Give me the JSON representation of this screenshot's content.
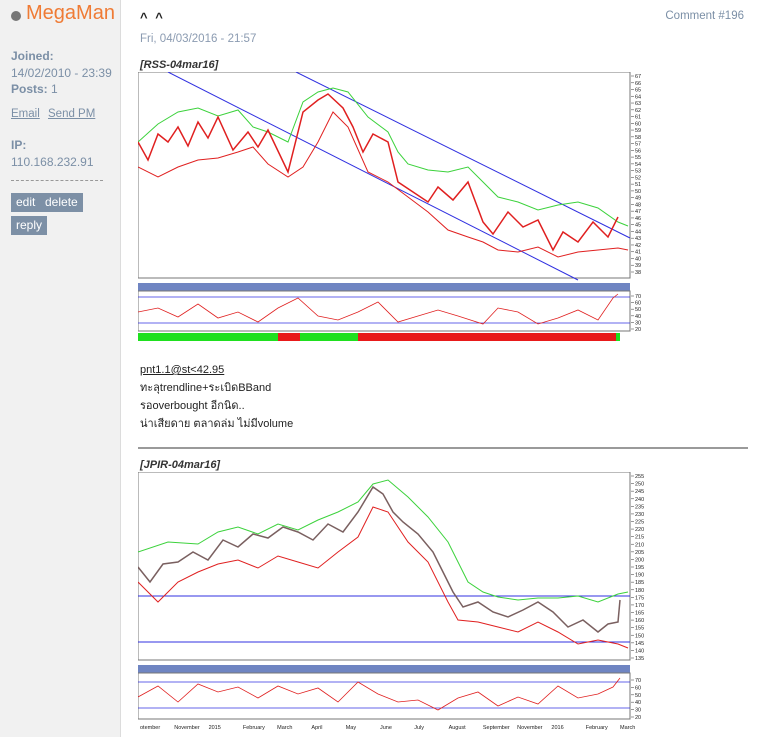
{
  "user": {
    "name": "MegaMan",
    "joined_label": "Joined:",
    "joined_value": "14/02/2010 - 23:39",
    "posts_label": "Posts:",
    "posts_value": "1",
    "email_link": "Email",
    "send_pm_link": "Send PM",
    "ip_label": "IP:",
    "ip_value": "110.168.232.91"
  },
  "actions": {
    "edit": "edit",
    "delete": "delete",
    "reply": "reply"
  },
  "post": {
    "title": "^ ^",
    "comment_number": "Comment #196",
    "date": "Fri, 04/03/2016 - 21:57",
    "chart1_title": "[RSS-04mar16]",
    "chart2_title": "[JPIR-04mar16]",
    "lines": [
      "pnt1.1@st<42.95",
      "ทะลุtrendline+ระเบิดBBand",
      "รอoverbought อีกนิด..",
      "น่าเสียดาย ตลาดล่ม ไม่มีvolume"
    ]
  },
  "colors": {
    "username": "#ef7b35",
    "meta": "#7b8fa6",
    "button_bg": "#7d90a6",
    "upper_band": "#3cd23c",
    "lower_band": "#e02020",
    "trend_line": "#3030e0",
    "panel_header": "#6f85c2"
  },
  "chart_data": [
    {
      "type": "line",
      "title": "[RSS-04mar16]",
      "y_ticks": [
        "67",
        "66",
        "65",
        "64",
        "63",
        "62",
        "61",
        "60",
        "59",
        "58",
        "57",
        "56",
        "55",
        "54",
        "53",
        "52",
        "51",
        "50",
        "49",
        "48",
        "47",
        "46",
        "45",
        "44",
        "43",
        "42",
        "41",
        "40",
        "39",
        "38"
      ],
      "ylim": [
        38,
        67
      ],
      "series": [
        {
          "values": [
            58,
            59,
            55,
            60,
            58,
            61,
            56,
            60,
            55,
            62,
            64,
            60,
            61,
            56,
            54,
            53,
            51,
            49,
            50,
            51,
            48,
            45,
            44,
            47,
            44,
            46,
            42,
            44,
            46,
            43,
            47
          ]
        }
      ],
      "indicator": {
        "y_ticks": [
          "70",
          "60",
          "50",
          "40",
          "30",
          "20"
        ],
        "ylim": [
          20,
          75
        ]
      }
    },
    {
      "type": "line",
      "title": "[JPIR-04mar16]",
      "y_ticks": [
        "255",
        "250",
        "245",
        "240",
        "235",
        "230",
        "225",
        "220",
        "215",
        "210",
        "205",
        "200",
        "195",
        "190",
        "185",
        "180",
        "175",
        "170",
        "165",
        "160",
        "155",
        "150",
        "145",
        "140",
        "135"
      ],
      "ylim": [
        135,
        255
      ],
      "x_labels": [
        "otember",
        "November",
        "2015",
        "February",
        "March",
        "April",
        "May",
        "June",
        "July",
        "August",
        "September",
        "November",
        "2016",
        "February",
        "March"
      ],
      "series": [
        {
          "values": [
            195,
            180,
            198,
            207,
            203,
            212,
            206,
            220,
            213,
            225,
            218,
            232,
            246,
            225,
            213,
            205,
            195,
            175,
            168,
            160,
            157,
            165,
            155,
            150,
            155,
            152,
            172
          ]
        }
      ],
      "hlines": [
        178,
        147
      ],
      "indicator": {
        "y_ticks": [
          "70",
          "60",
          "50",
          "40",
          "30",
          "20"
        ],
        "ylim": [
          20,
          75
        ]
      }
    }
  ]
}
